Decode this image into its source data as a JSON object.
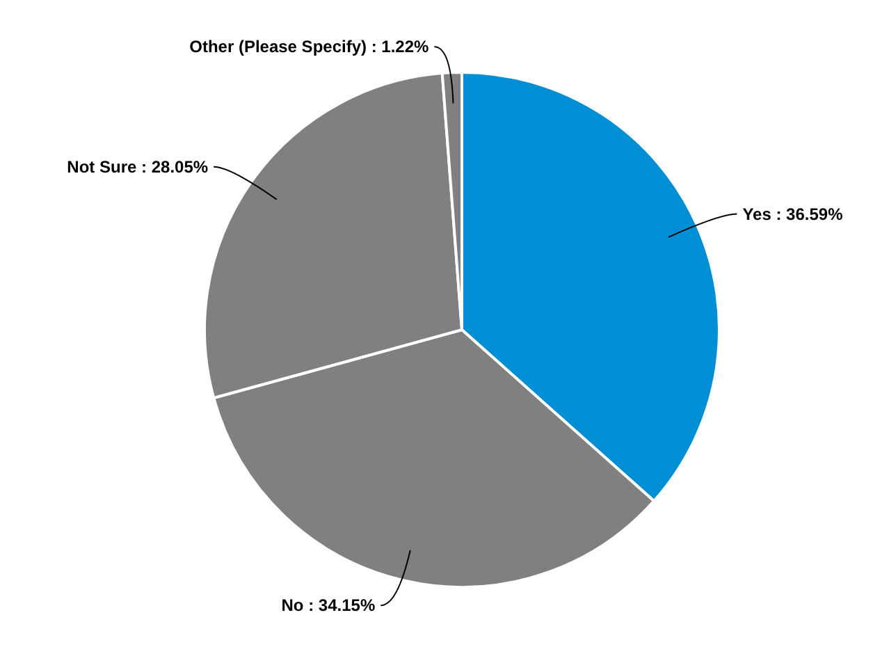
{
  "chart_data": {
    "type": "pie",
    "categories": [
      "Yes",
      "No",
      "Not Sure",
      "Other (Please Specify)"
    ],
    "values": [
      36.59,
      34.15,
      28.05,
      1.22
    ],
    "colors": [
      "#008fd5",
      "#808080",
      "#808080",
      "#808080"
    ],
    "value_labels": [
      "36.59%",
      "34.15%",
      "28.05%",
      "1.22%"
    ]
  }
}
